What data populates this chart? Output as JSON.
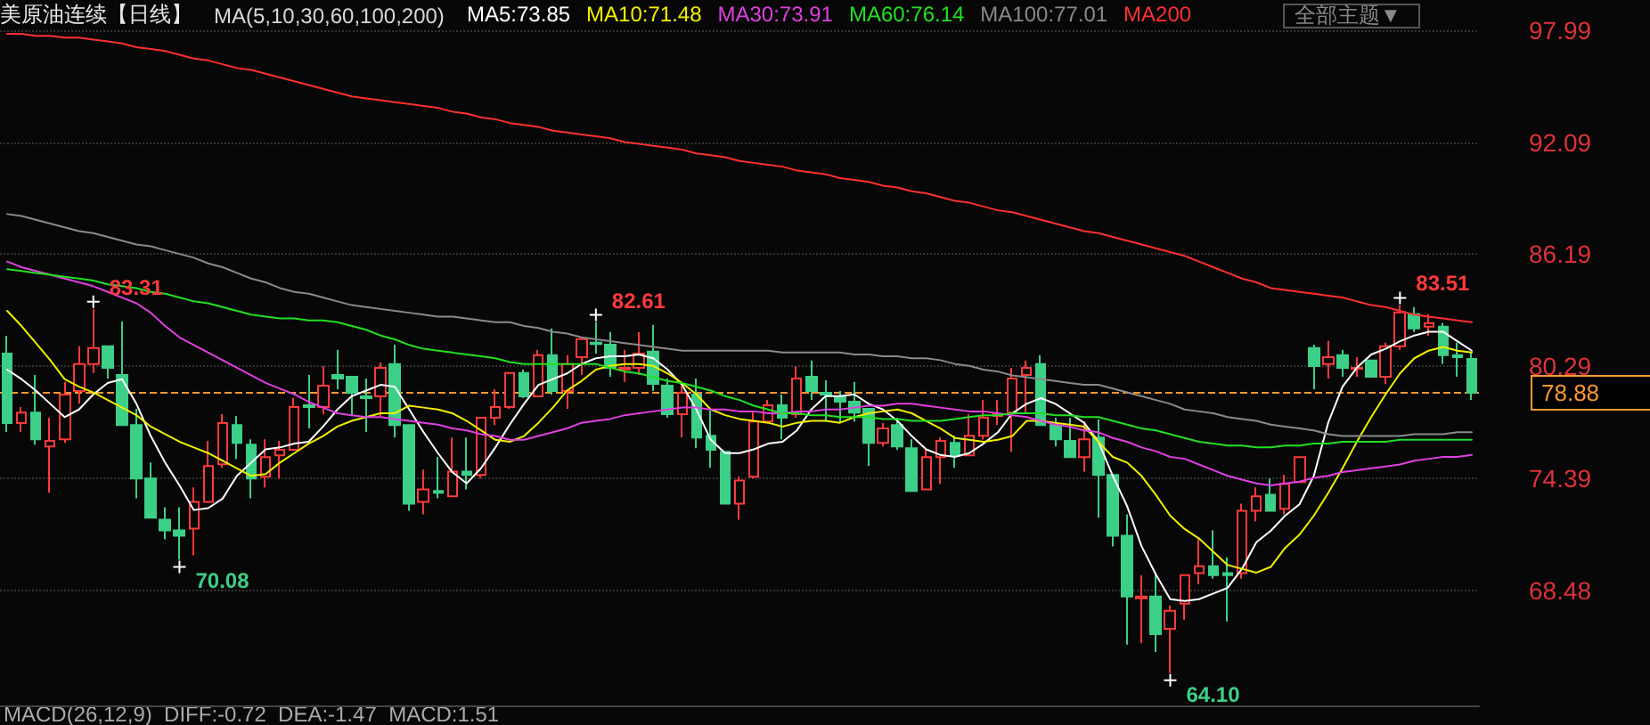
{
  "chart_data": {
    "type": "candlestick",
    "title": "美原油连续【日线】",
    "legend_title": "MA(5,10,30,60,100,200)",
    "categories": [
      null,
      null,
      null,
      null,
      null,
      null,
      null,
      null,
      null,
      null,
      null,
      null,
      null,
      null,
      null,
      null,
      null,
      null,
      null,
      null,
      null,
      null,
      null,
      null,
      null,
      null,
      null,
      null,
      null,
      null,
      null,
      null,
      null,
      null,
      null,
      null,
      null,
      null,
      null,
      null,
      null,
      null,
      null,
      null,
      null,
      null,
      null,
      null,
      null,
      null,
      null,
      null,
      null,
      null,
      null,
      null,
      null,
      null,
      null,
      null,
      null,
      null,
      null,
      null,
      null,
      null,
      null,
      null,
      null,
      null,
      null,
      null,
      null,
      null,
      null,
      null,
      null,
      null,
      null,
      null,
      null,
      null,
      null,
      null,
      null,
      null,
      null,
      null,
      null,
      null,
      null,
      null,
      null,
      null,
      null,
      null,
      null,
      null,
      null,
      null,
      null,
      null,
      null
    ],
    "colors": [
      "#ff3a3a",
      "#3ccf88"
    ],
    "series": [
      {
        "ohlc": [
          [
            80.95,
            81.89,
            76.81,
            77.28
          ],
          [
            77.28,
            78.13,
            76.81,
            77.84
          ],
          [
            77.84,
            79.82,
            76.15,
            76.43
          ],
          [
            76.05,
            77.56,
            73.61,
            76.34
          ],
          [
            76.43,
            79.45,
            76.24,
            78.79
          ],
          [
            78.97,
            81.33,
            78.31,
            80.39
          ],
          [
            80.39,
            83.31,
            79.92,
            81.24
          ],
          [
            81.33,
            81.33,
            79.63,
            80.2
          ],
          [
            79.82,
            82.65,
            77.18,
            77.18
          ],
          [
            77.18,
            78.03,
            73.32,
            74.36
          ],
          [
            74.36,
            75.21,
            72.29,
            72.29
          ],
          [
            72.19,
            72.85,
            71.16,
            71.63
          ],
          [
            71.63,
            72.85,
            70.08,
            71.34
          ],
          [
            71.72,
            73.89,
            70.31,
            73.13
          ],
          [
            73.13,
            76.34,
            73.13,
            75.02
          ],
          [
            75.11,
            77.75,
            74.92,
            77.28
          ],
          [
            77.18,
            77.66,
            75.39,
            76.24
          ],
          [
            76.15,
            76.43,
            73.32,
            74.36
          ],
          [
            74.45,
            76.43,
            73.89,
            75.49
          ],
          [
            75.58,
            76.34,
            74.36,
            75.87
          ],
          [
            75.87,
            78.6,
            75.87,
            78.13
          ],
          [
            78.22,
            79.82,
            77,
            78.13
          ],
          [
            78.13,
            80.29,
            77.75,
            79.26
          ],
          [
            79.82,
            81.14,
            79.07,
            79.63
          ],
          [
            79.73,
            79.73,
            77.66,
            78.88
          ],
          [
            78.69,
            79.63,
            76.81,
            78.6
          ],
          [
            78.69,
            80.48,
            77.66,
            80.2
          ],
          [
            80.39,
            81.42,
            76.52,
            77.18
          ],
          [
            77.18,
            77.18,
            72.66,
            73.04
          ],
          [
            73.13,
            74.83,
            72.47,
            73.79
          ],
          [
            73.7,
            75.49,
            73.32,
            73.61
          ],
          [
            73.42,
            76.52,
            73.42,
            74.73
          ],
          [
            74.73,
            76.52,
            73.79,
            74.55
          ],
          [
            74.55,
            77.56,
            74.36,
            77.56
          ],
          [
            77.56,
            79.07,
            77.18,
            78.13
          ],
          [
            78.13,
            79.92,
            78.03,
            79.92
          ],
          [
            79.92,
            80.1,
            78.6,
            78.69
          ],
          [
            78.69,
            81.14,
            78.69,
            80.86
          ],
          [
            80.86,
            82.27,
            78.79,
            78.97
          ],
          [
            78.97,
            80.86,
            78.03,
            80.39
          ],
          [
            80.76,
            81.8,
            79.82,
            81.71
          ],
          [
            81.52,
            82.61,
            80.95,
            81.45
          ],
          [
            81.42,
            82.08,
            79.73,
            80.2
          ],
          [
            80.1,
            81.14,
            79.45,
            80.2
          ],
          [
            80.2,
            82.08,
            79.82,
            80.95
          ],
          [
            81.05,
            82.46,
            78.97,
            79.35
          ],
          [
            79.26,
            79.63,
            77.56,
            77.75
          ],
          [
            77.75,
            79.26,
            76.52,
            78.88
          ],
          [
            78.79,
            79.63,
            75.96,
            76.52
          ],
          [
            76.62,
            77.94,
            74.92,
            75.87
          ],
          [
            75.77,
            75.77,
            73.04,
            73.04
          ],
          [
            73.04,
            74.45,
            72.19,
            74.26
          ],
          [
            74.45,
            77.84,
            74.36,
            77.37
          ],
          [
            77.37,
            78.5,
            77.28,
            78.22
          ],
          [
            78.22,
            78.79,
            76.43,
            77.56
          ],
          [
            77.75,
            80.29,
            77.56,
            79.63
          ],
          [
            79.73,
            80.58,
            78.5,
            78.97
          ],
          [
            78.88,
            79.54,
            77.37,
            78.79
          ],
          [
            78.69,
            78.97,
            77.28,
            78.41
          ],
          [
            78.41,
            79.45,
            77.37,
            77.84
          ],
          [
            78.03,
            78.03,
            75.02,
            76.24
          ],
          [
            76.24,
            77.28,
            76.05,
            77
          ],
          [
            77.18,
            77.56,
            75.87,
            76.05
          ],
          [
            75.96,
            76.43,
            73.7,
            73.7
          ],
          [
            73.79,
            75.87,
            73.79,
            75.49
          ],
          [
            75.49,
            76.52,
            74.08,
            76.34
          ],
          [
            76.24,
            76.62,
            74.92,
            75.58
          ],
          [
            75.58,
            77.75,
            75.58,
            76.62
          ],
          [
            76.62,
            78.5,
            76.43,
            77.56
          ],
          [
            77.66,
            78.5,
            77.18,
            77.75
          ],
          [
            77.84,
            80.2,
            75.77,
            79.63
          ],
          [
            79.82,
            80.58,
            77.75,
            80.2
          ],
          [
            80.39,
            80.86,
            77.18,
            77.18
          ],
          [
            77.18,
            77.56,
            76.05,
            76.43
          ],
          [
            76.34,
            77.56,
            75.49,
            75.49
          ],
          [
            75.49,
            77.37,
            74.73,
            76.43
          ],
          [
            76.52,
            77.47,
            72.29,
            74.55
          ],
          [
            74.55,
            74.55,
            70.78,
            71.34
          ],
          [
            71.34,
            72.47,
            65.6,
            68.14
          ],
          [
            68.05,
            69.27,
            65.69,
            68.14
          ],
          [
            68.14,
            69.37,
            65.22,
            66.16
          ],
          [
            66.44,
            67.67,
            64.1,
            67.39
          ],
          [
            67.77,
            69.27,
            66.92,
            69.27
          ],
          [
            69.37,
            71.16,
            68.8,
            69.74
          ],
          [
            69.74,
            71.63,
            69.08,
            69.27
          ],
          [
            69.37,
            70.21,
            66.82,
            69.27
          ],
          [
            69.37,
            73.04,
            69.08,
            72.66
          ],
          [
            72.66,
            73.89,
            72.1,
            73.42
          ],
          [
            73.51,
            74.36,
            72.66,
            72.66
          ],
          [
            72.76,
            74.55,
            72.47,
            74.08
          ],
          [
            74.17,
            75.49,
            74.17,
            75.49
          ],
          [
            81.24,
            81.42,
            79.07,
            80.29
          ],
          [
            80.39,
            81.61,
            79.63,
            80.76
          ],
          [
            80.86,
            81.14,
            79.73,
            80.2
          ],
          [
            80.15,
            80.76,
            79.73,
            80.2
          ],
          [
            80.58,
            80.58,
            79.73,
            79.73
          ],
          [
            79.73,
            81.52,
            79.35,
            81.33
          ],
          [
            81.33,
            83.51,
            81.14,
            83.12
          ],
          [
            83.02,
            83.4,
            82.08,
            82.27
          ],
          [
            82.37,
            83.02,
            81.89,
            82.55
          ],
          [
            82.37,
            82.55,
            80.39,
            80.86
          ],
          [
            80.86,
            81.52,
            79.73,
            80.76
          ],
          [
            80.67,
            81.05,
            78.5,
            78.88
          ]
        ]
      },
      {
        "type": "line",
        "name": "MA5:73.85",
        "color": "#ffffff",
        "values": [
          80.1,
          79.6,
          79.0,
          78.3,
          77.6,
          78.0,
          78.8,
          79.4,
          79.6,
          78.3,
          76.6,
          75.2,
          74.0,
          72.7,
          72.8,
          73.3,
          74.5,
          75.2,
          75.9,
          76.0,
          76.2,
          76.3,
          77.1,
          78.0,
          78.7,
          79.0,
          79.3,
          79.2,
          78.0,
          76.8,
          75.7,
          74.7,
          74.1,
          74.9,
          76.0,
          77.2,
          78.3,
          79.3,
          79.6,
          79.9,
          80.4,
          80.7,
          80.8,
          80.8,
          80.9,
          80.7,
          80.1,
          79.3,
          78.0,
          76.4,
          75.7,
          75.7,
          75.9,
          76.2,
          76.3,
          76.9,
          78.0,
          78.7,
          78.7,
          78.8,
          78.3,
          78.0,
          77.4,
          76.6,
          75.9,
          75.6,
          75.5,
          75.7,
          76.2,
          76.8,
          77.8,
          78.3,
          78.6,
          78.3,
          77.8,
          77.3,
          76.3,
          74.5,
          72.9,
          70.8,
          69.3,
          68.0,
          67.9,
          68.0,
          68.3,
          68.6,
          69.6,
          71.0,
          71.6,
          72.4,
          73.0,
          74.5,
          77.3,
          79.2,
          80.2,
          80.9,
          81.2,
          81.6,
          81.9,
          82.1,
          82.1,
          81.6,
          81.1
        ]
      },
      {
        "type": "line",
        "name": "MA10:71.48",
        "color": "#f0f000",
        "values": [
          83.2,
          82.4,
          81.5,
          80.6,
          79.6,
          79.2,
          78.9,
          78.5,
          78.1,
          77.7,
          77.1,
          76.7,
          76.3,
          76.0,
          75.7,
          75.3,
          74.9,
          74.5,
          74.6,
          75.2,
          75.7,
          76.2,
          76.6,
          77.1,
          77.4,
          77.6,
          77.8,
          77.8,
          78.2,
          78.1,
          78.0,
          77.8,
          77.4,
          76.9,
          76.4,
          76.3,
          76.6,
          77.3,
          78.1,
          79.0,
          79.5,
          80.1,
          80.3,
          80.4,
          80.4,
          80.3,
          79.9,
          79.4,
          78.8,
          78.0,
          77.7,
          77.5,
          77.4,
          77.3,
          77.1,
          77.3,
          77.4,
          77.4,
          77.3,
          77.6,
          77.8,
          77.9,
          78.0,
          77.8,
          77.4,
          77.0,
          76.5,
          76.4,
          76.3,
          76.4,
          76.6,
          77.4,
          77.4,
          77.3,
          77.2,
          77.1,
          76.3,
          75.5,
          75.2,
          74.5,
          73.5,
          72.4,
          71.7,
          71.2,
          70.5,
          69.8,
          69.6,
          69.4,
          69.7,
          70.7,
          71.4,
          72.4,
          73.6,
          74.9,
          76.3,
          77.6,
          78.8,
          79.9,
          80.7,
          81.1,
          81.3,
          81.1,
          81.0
        ]
      },
      {
        "type": "line",
        "name": "MA30:73.91",
        "color": "#e040e0",
        "values": [
          85.8,
          85.5,
          85.3,
          85.1,
          84.9,
          84.7,
          84.5,
          84.2,
          83.9,
          83.6,
          83.1,
          82.4,
          81.8,
          81.4,
          81.0,
          80.6,
          80.2,
          79.8,
          79.4,
          79.1,
          78.8,
          78.4,
          78.1,
          77.8,
          77.7,
          77.6,
          77.6,
          77.5,
          77.4,
          77.3,
          77.2,
          77.0,
          76.9,
          76.7,
          76.6,
          76.4,
          76.4,
          76.6,
          76.8,
          77.0,
          77.3,
          77.4,
          77.5,
          77.7,
          77.8,
          77.9,
          78.0,
          78.1,
          78.1,
          78.0,
          78.0,
          77.9,
          77.9,
          77.8,
          77.8,
          77.9,
          77.9,
          78.0,
          78.0,
          78.1,
          78.2,
          78.2,
          78.3,
          78.3,
          78.2,
          78.1,
          78.0,
          77.9,
          77.9,
          77.8,
          77.7,
          77.6,
          77.4,
          77.2,
          77.1,
          76.9,
          76.8,
          76.5,
          76.3,
          76.0,
          75.8,
          75.5,
          75.4,
          75.1,
          74.8,
          74.5,
          74.3,
          74.1,
          74.0,
          74.1,
          74.2,
          74.4,
          74.5,
          74.7,
          74.8,
          74.9,
          75.0,
          75.1,
          75.3,
          75.4,
          75.5,
          75.5,
          75.6
        ]
      },
      {
        "type": "line",
        "name": "MA60:76.14",
        "color": "#22e022",
        "values": [
          85.4,
          85.3,
          85.2,
          85.1,
          85.0,
          84.9,
          84.8,
          84.6,
          84.5,
          84.4,
          84.2,
          84.1,
          83.9,
          83.7,
          83.6,
          83.4,
          83.2,
          83.0,
          82.9,
          82.8,
          82.8,
          82.7,
          82.7,
          82.6,
          82.4,
          82.2,
          81.9,
          81.7,
          81.4,
          81.2,
          81.1,
          81.0,
          80.9,
          80.8,
          80.7,
          80.5,
          80.4,
          80.4,
          80.4,
          80.4,
          80.4,
          80.4,
          80.2,
          80.0,
          79.9,
          79.7,
          79.5,
          79.4,
          79.2,
          79.0,
          78.7,
          78.5,
          78.2,
          78.0,
          77.8,
          77.8,
          77.7,
          77.7,
          77.6,
          77.6,
          77.6,
          77.5,
          77.5,
          77.4,
          77.4,
          77.4,
          77.5,
          77.6,
          77.7,
          77.7,
          77.8,
          77.8,
          77.8,
          77.7,
          77.7,
          77.6,
          77.6,
          77.4,
          77.2,
          77.0,
          76.9,
          76.7,
          76.5,
          76.3,
          76.2,
          76.1,
          76.1,
          76.0,
          76.0,
          76.1,
          76.1,
          76.2,
          76.2,
          76.3,
          76.3,
          76.3,
          76.3,
          76.4,
          76.4,
          76.4,
          76.4,
          76.4,
          76.4
        ]
      },
      {
        "type": "line",
        "name": "MA100:77.01",
        "color": "#8a8a8a",
        "values": [
          88.3,
          88.2,
          88.0,
          87.8,
          87.6,
          87.4,
          87.3,
          87.1,
          86.9,
          86.7,
          86.6,
          86.4,
          86.2,
          86.0,
          85.7,
          85.5,
          85.2,
          84.9,
          84.7,
          84.4,
          84.2,
          84.1,
          83.9,
          83.7,
          83.5,
          83.4,
          83.3,
          83.2,
          83.1,
          83.0,
          82.9,
          82.9,
          82.8,
          82.7,
          82.6,
          82.6,
          82.4,
          82.3,
          82.1,
          82.0,
          81.8,
          81.7,
          81.6,
          81.5,
          81.4,
          81.3,
          81.2,
          81.1,
          81.1,
          81.1,
          81.1,
          81.1,
          81.1,
          81.1,
          81.0,
          81.0,
          81.0,
          81.0,
          81.0,
          80.9,
          80.9,
          80.8,
          80.8,
          80.7,
          80.7,
          80.6,
          80.4,
          80.3,
          80.1,
          80.0,
          79.8,
          79.7,
          79.6,
          79.5,
          79.4,
          79.3,
          79.3,
          79.1,
          78.9,
          78.7,
          78.5,
          78.3,
          78.0,
          77.9,
          77.8,
          77.6,
          77.5,
          77.4,
          77.2,
          77.1,
          77.0,
          76.9,
          76.7,
          76.6,
          76.6,
          76.6,
          76.6,
          76.6,
          76.7,
          76.7,
          76.7,
          76.8,
          76.8
        ]
      },
      {
        "type": "line",
        "name": "MA200",
        "color": "#ff3030",
        "values": [
          97.8,
          97.8,
          97.7,
          97.7,
          97.6,
          97.6,
          97.5,
          97.4,
          97.3,
          97.1,
          97.0,
          96.9,
          96.7,
          96.5,
          96.4,
          96.2,
          96.0,
          95.9,
          95.7,
          95.5,
          95.3,
          95.1,
          94.9,
          94.7,
          94.5,
          94.4,
          94.3,
          94.2,
          94.1,
          94.0,
          93.9,
          93.7,
          93.6,
          93.4,
          93.3,
          93.1,
          93.0,
          92.9,
          92.7,
          92.6,
          92.5,
          92.4,
          92.3,
          92.1,
          92.0,
          91.9,
          91.8,
          91.7,
          91.5,
          91.4,
          91.3,
          91.1,
          91.0,
          90.9,
          90.8,
          90.6,
          90.5,
          90.4,
          90.2,
          90.1,
          90.0,
          89.8,
          89.7,
          89.5,
          89.4,
          89.2,
          89.0,
          88.9,
          88.7,
          88.5,
          88.4,
          88.2,
          88.0,
          87.8,
          87.6,
          87.4,
          87.3,
          87.1,
          86.9,
          86.7,
          86.5,
          86.3,
          86.1,
          85.8,
          85.5,
          85.2,
          84.9,
          84.7,
          84.4,
          84.3,
          84.2,
          84.1,
          84.0,
          83.9,
          83.7,
          83.5,
          83.4,
          83.2,
          83.0,
          82.9,
          82.8,
          82.7,
          82.6
        ]
      }
    ],
    "ylim": [
      62.4,
      97.99
    ],
    "yticks": [
      68.48,
      74.39,
      80.29,
      86.19,
      92.09,
      97.99
    ],
    "grid": "y",
    "tick_labels": "y",
    "legend": "top",
    "line_style": "solid",
    "ref_lines": [
      {
        "axis": "y",
        "value": 78.88,
        "label": "78.88",
        "color": "#ff9933",
        "line_style": "dashed"
      }
    ],
    "annotations": [
      "83.31",
      "70.08",
      "82.61",
      "64.10",
      "83.51",
      "全部主题▼",
      "MACD(26,12,9)  DIFF:-0.72  DEA:-1.47  MACD:1.51"
    ]
  }
}
